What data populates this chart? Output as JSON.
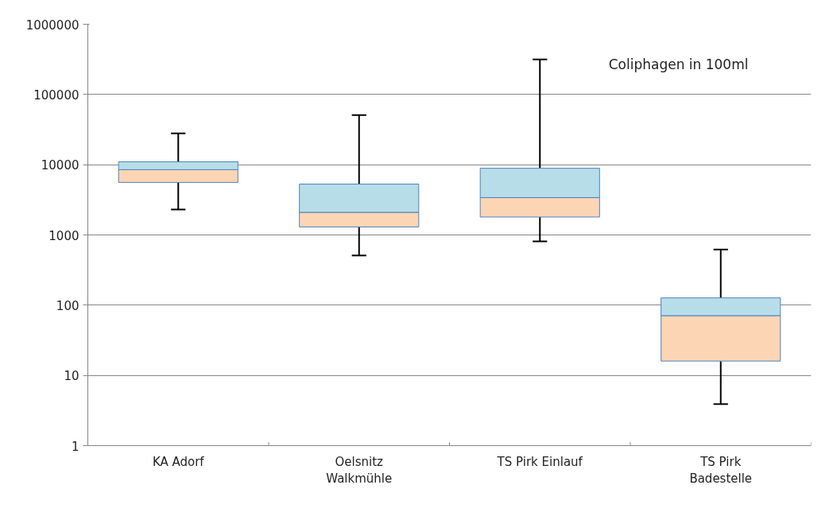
{
  "chart_data": {
    "type": "box",
    "categories": [
      "KA Adorf",
      "Oelsnitz\nWalkmühle",
      "TS Pirk Einlauf",
      "TS Pirk\nBadestelle"
    ],
    "boxes": [
      {
        "low": 2300,
        "q1": 5600,
        "median": 8500,
        "q3": 11000,
        "high": 28000
      },
      {
        "low": 510,
        "q1": 1300,
        "median": 2100,
        "q3": 5300,
        "high": 51000
      },
      {
        "low": 810,
        "q1": 1800,
        "median": 3400,
        "q3": 8900,
        "high": 316000
      },
      {
        "low": 3.9,
        "q1": 16,
        "median": 71,
        "q3": 127,
        "high": 620
      }
    ],
    "colors": [
      [
        "#fcd5b5",
        "#b7dee8"
      ],
      [
        "#fcd5b5",
        "#b7dee8"
      ],
      [
        "#fcd5b5",
        "#b7dee8"
      ],
      [
        "#fcd5b5",
        "#b7dee8"
      ]
    ],
    "log": true,
    "ylim": [
      1,
      1000000
    ],
    "yticks": [
      1,
      10,
      100,
      1000,
      10000,
      100000,
      1000000
    ],
    "grid": "y",
    "annotations": [
      "Coliphagen in 100ml"
    ]
  }
}
